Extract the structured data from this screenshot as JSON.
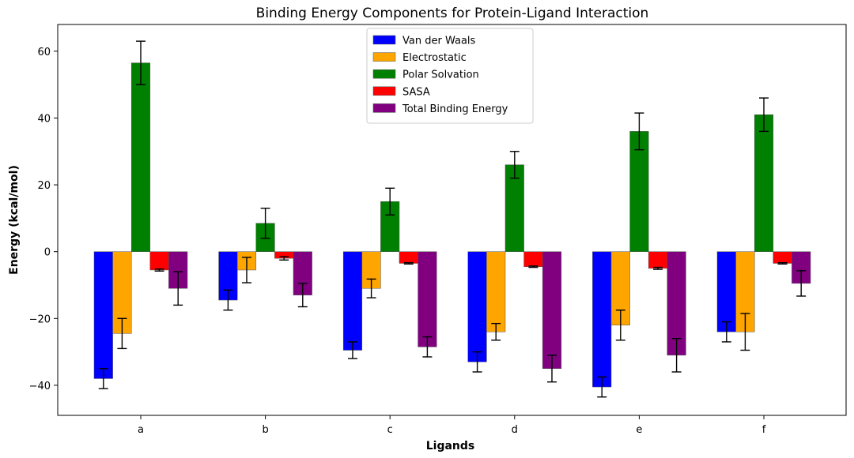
{
  "chart_data": {
    "type": "bar",
    "title": "Binding Energy Components for Protein-Ligand Interaction",
    "xlabel": "Ligands",
    "ylabel": "Energy (kcal/mol)",
    "ylim": [
      -49,
      68
    ],
    "yticks": [
      -40,
      -20,
      0,
      20,
      40,
      60
    ],
    "ytick_labels": [
      "−40",
      "−20",
      "0",
      "20",
      "40",
      "60"
    ],
    "categories": [
      "a",
      "b",
      "c",
      "d",
      "e",
      "f"
    ],
    "series": [
      {
        "name": "Van der Waals",
        "color": "#0000ff",
        "values": [
          -38,
          -14.5,
          -29.5,
          -33,
          -40.5,
          -24
        ],
        "errors": [
          3,
          3,
          2.5,
          3,
          3,
          3
        ]
      },
      {
        "name": "Electrostatic",
        "color": "#ffa500",
        "values": [
          -24.5,
          -5.5,
          -11,
          -24,
          -22,
          -24
        ],
        "errors": [
          4.5,
          3.8,
          2.8,
          2.5,
          4.5,
          5.5
        ]
      },
      {
        "name": "Polar Solvation",
        "color": "#008000",
        "values": [
          56.5,
          8.5,
          15,
          26,
          36,
          41
        ],
        "errors": [
          6.5,
          4.5,
          4,
          4,
          5.5,
          5
        ]
      },
      {
        "name": "SASA",
        "color": "#ff0000",
        "values": [
          -5.5,
          -2,
          -3.5,
          -4.5,
          -5,
          -3.5
        ],
        "errors": [
          0.3,
          0.5,
          0.2,
          0.2,
          0.3,
          0.2
        ]
      },
      {
        "name": "Total Binding Energy",
        "color": "#800080",
        "values": [
          -11,
          -13,
          -28.5,
          -35,
          -31,
          -9.5
        ],
        "errors": [
          5,
          3.5,
          3,
          4,
          5,
          3.8
        ]
      }
    ],
    "legend_position": "top-center",
    "grid": false
  }
}
